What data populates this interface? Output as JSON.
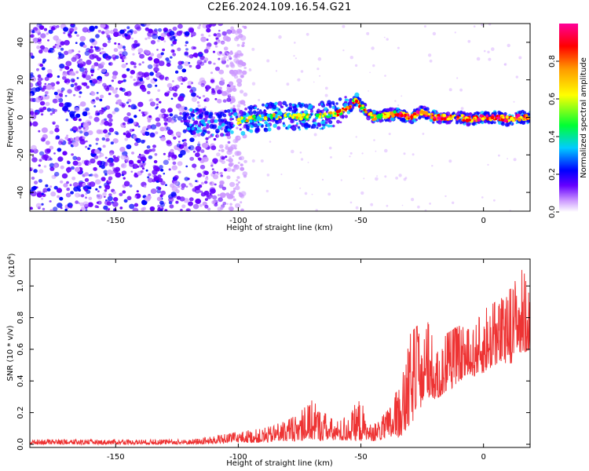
{
  "title": "C2E6.2024.109.16.54.G21",
  "chart_data": [
    {
      "type": "heatmap",
      "xlabel": "Height of straight line (km)",
      "ylabel": "Frequency (Hz)",
      "xlim": [
        -185,
        19
      ],
      "ylim": [
        -50,
        50
      ],
      "xticks": [
        -150,
        -100,
        -50,
        0
      ],
      "yticks": [
        -40,
        -20,
        0,
        20,
        40
      ],
      "colorbar": {
        "label": "Normalized spectral amplitude",
        "range": [
          0.0,
          1.0
        ],
        "ticks": [
          "0.0",
          "0.2",
          "0.4",
          "0.6",
          "0.8"
        ],
        "colors": [
          "#ffffff",
          "#cc99ff",
          "#6600ff",
          "#0000ff",
          "#00ccff",
          "#00ff33",
          "#ffff00",
          "#ff9900",
          "#ff0000",
          "#ff0099"
        ]
      },
      "ridge": {
        "x": [
          -120,
          -110,
          -100,
          -90,
          -80,
          -70,
          -60,
          -55,
          -52,
          -50,
          -45,
          -40,
          -35,
          -30,
          -25,
          -20,
          -15,
          -10,
          -5,
          0,
          5,
          10,
          15,
          19
        ],
        "y": [
          -2,
          -3,
          -2,
          0,
          1,
          0,
          2,
          5,
          10,
          6,
          0,
          1,
          2,
          0,
          3,
          0,
          0,
          0,
          -1,
          0,
          0,
          -1,
          0,
          0
        ]
      }
    },
    {
      "type": "line",
      "xlabel": "Height of straight line (km)",
      "ylabel": "SNR (10 * v/v)",
      "multiplier": "(x10",
      "multiplier_exp": "4",
      "multiplier_close": ")",
      "xlim": [
        -185,
        19
      ],
      "ylim": [
        -0.02,
        1.17
      ],
      "xticks": [
        -150,
        -100,
        -50,
        0
      ],
      "yticks": [
        "0.0",
        "0.2",
        "0.4",
        "0.6",
        "0.8",
        "1.0"
      ],
      "color": "#ee3333",
      "envelope": {
        "x": [
          -185,
          -160,
          -120,
          -110,
          -100,
          -90,
          -80,
          -75,
          -70,
          -65,
          -60,
          -55,
          -50,
          -48,
          -45,
          -40,
          -35,
          -32,
          -30,
          -27,
          -25,
          -22,
          -20,
          -15,
          -10,
          -5,
          0,
          5,
          10,
          15,
          19
        ],
        "low": [
          0.0,
          0.0,
          0.0,
          0.0,
          0.01,
          0.01,
          0.02,
          0.02,
          0.03,
          0.02,
          0.02,
          0.02,
          0.02,
          0.03,
          0.02,
          0.03,
          0.04,
          0.06,
          0.12,
          0.18,
          0.25,
          0.3,
          0.28,
          0.32,
          0.4,
          0.42,
          0.45,
          0.5,
          0.5,
          0.55,
          0.6
        ],
        "high": [
          0.03,
          0.03,
          0.03,
          0.05,
          0.08,
          0.1,
          0.15,
          0.2,
          0.28,
          0.2,
          0.15,
          0.18,
          0.32,
          0.15,
          0.12,
          0.2,
          0.35,
          0.5,
          0.7,
          0.75,
          0.6,
          0.82,
          0.55,
          0.7,
          0.75,
          0.72,
          0.85,
          0.9,
          0.95,
          1.17,
          0.95
        ]
      }
    }
  ]
}
